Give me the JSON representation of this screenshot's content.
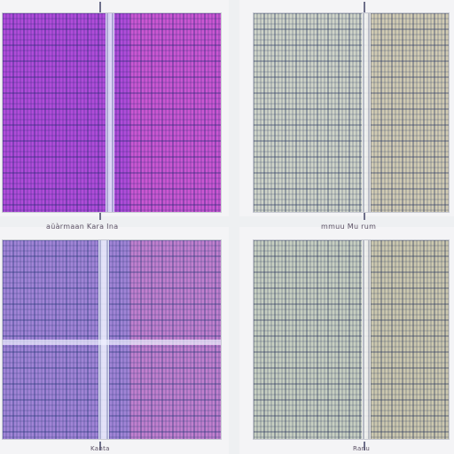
{
  "panels": [
    {
      "id": "top-left",
      "palette": {
        "bg": "#b04cd9",
        "grid": "#2b2a78",
        "accent": "#ff6ec7",
        "highlight": "#e9ecff"
      }
    },
    {
      "id": "top-right",
      "palette": {
        "bg": "#cfd4c8",
        "grid": "#2e3c64",
        "accent": "#d5b98c",
        "highlight": "#f7f7f7"
      }
    },
    {
      "id": "bottom-left",
      "palette": {
        "bg": "#a184d6",
        "grid": "#2b3a7a",
        "accent": "#ff79bf",
        "highlight": "#f0f2ff"
      }
    },
    {
      "id": "bottom-right",
      "palette": {
        "bg": "#c7cfc1",
        "grid": "#2f3b5e",
        "accent": "#d7b98f",
        "highlight": "#f7f7f7"
      }
    }
  ],
  "labels": {
    "top_left_bottom": "aŭàrmaan Kara Ina",
    "top_right_bottom": "mmuu Mu rum",
    "bottom_left_bottom": "Kanta",
    "bottom_right_bottom": "Ranu"
  }
}
